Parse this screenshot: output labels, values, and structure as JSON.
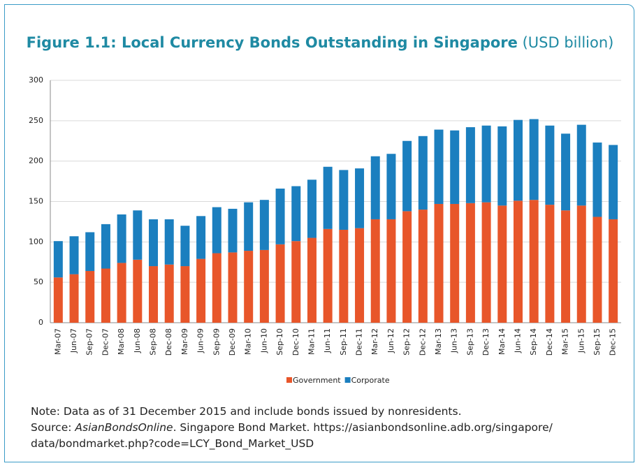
{
  "chart_data": {
    "type": "stacked_bar",
    "title": "Figure 1.1: Local Currency Bonds Outstanding in Singapore",
    "subtitle": "(USD billion)",
    "categories": [
      "Mar-07",
      "Jun-07",
      "Sep-07",
      "Dec-07",
      "Mar-08",
      "Jun-08",
      "Sep-08",
      "Dec-08",
      "Mar-09",
      "Jun-09",
      "Sep-09",
      "Dec-09",
      "Mar-10",
      "Jun-10",
      "Sep-10",
      "Dec-10",
      "Mar-11",
      "Jun-11",
      "Sep-11",
      "Dec-11",
      "Mar-12",
      "Jun-12",
      "Sep-12",
      "Dec-12",
      "Mar-13",
      "Jun-13",
      "Sep-13",
      "Dec-13",
      "Mar-14",
      "Jun-14",
      "Sep-14",
      "Dec-14",
      "Mar-15",
      "Jun-15",
      "Sep-15",
      "Dec-15"
    ],
    "series": [
      {
        "name": "Government",
        "color": "#e8562a",
        "values": [
          56,
          60,
          64,
          67,
          74,
          78,
          70,
          72,
          70,
          79,
          86,
          87,
          89,
          90,
          97,
          101,
          105,
          116,
          115,
          117,
          128,
          128,
          138,
          140,
          147,
          147,
          148,
          149,
          145,
          151,
          152,
          146,
          139,
          145,
          131,
          128
        ]
      },
      {
        "name": "Corporate",
        "color": "#1b7fbf",
        "values": [
          45,
          47,
          48,
          55,
          60,
          61,
          58,
          56,
          50,
          53,
          57,
          54,
          60,
          62,
          69,
          68,
          72,
          77,
          74,
          74,
          78,
          81,
          87,
          91,
          92,
          91,
          94,
          95,
          98,
          100,
          100,
          98,
          95,
          100,
          92,
          92
        ]
      }
    ],
    "ylim": [
      0,
      300
    ],
    "yticks": [
      0,
      50,
      100,
      150,
      200,
      250,
      300
    ],
    "grid": true,
    "legend": "bottom"
  },
  "notes": {
    "note": "Note: Data as of 31 December 2015 and include bonds issued by nonresidents.",
    "source_label": "Source:",
    "source_publisher": "AsianBondsOnline",
    "source_line1": ". Singapore Bond Market. https://asianbondsonline.adb.org/singapore/",
    "source_line2": "data/bondmarket.php?code=LCY_Bond_Market_USD"
  }
}
